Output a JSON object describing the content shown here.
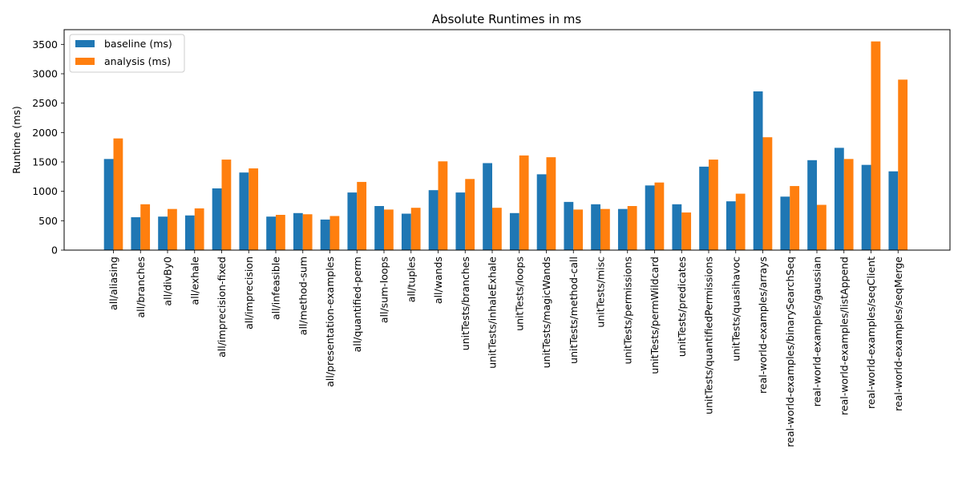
{
  "chart_data": {
    "type": "bar",
    "title": "Absolute Runtimes in ms",
    "xlabel": "",
    "ylabel": "Runtime (ms)",
    "ylim": [
      0,
      3750
    ],
    "yticks": [
      0,
      500,
      1000,
      1500,
      2000,
      2500,
      3000,
      3500
    ],
    "grid": false,
    "legend_position": "top-left",
    "categories": [
      "all/aliasing",
      "all/branches",
      "all/divBy0",
      "all/exhale",
      "all/imprecision-fixed",
      "all/imprecision",
      "all/infeasible",
      "all/method-sum",
      "all/presentation-examples",
      "all/quantified-perm",
      "all/sum-loops",
      "all/tuples",
      "all/wands",
      "unitTests/branches",
      "unitTests/inhaleExhale",
      "unitTests/loops",
      "unitTests/magicWands",
      "unitTests/method-call",
      "unitTests/misc",
      "unitTests/permissions",
      "unitTests/permWildcard",
      "unitTests/predicates",
      "unitTests/quantifiedPermissions",
      "unitTests/quasihavoc",
      "real-world-examples/arrays",
      "real-world-examples/binarySearchSeq",
      "real-world-examples/gaussian",
      "real-world-examples/listAppend",
      "real-world-examples/seqClient",
      "real-world-examples/seqMerge"
    ],
    "series": [
      {
        "name": "baseline (ms)",
        "color": "#1f77b4",
        "values": [
          1550,
          560,
          570,
          590,
          1050,
          1320,
          570,
          630,
          520,
          980,
          750,
          620,
          1020,
          980,
          1480,
          630,
          1290,
          820,
          780,
          700,
          1100,
          780,
          1420,
          830,
          2700,
          910,
          1530,
          1740,
          1450,
          1340
        ]
      },
      {
        "name": "analysis (ms)",
        "color": "#ff7f0e",
        "values": [
          1900,
          780,
          700,
          710,
          1540,
          1390,
          600,
          610,
          580,
          1160,
          690,
          720,
          1510,
          1210,
          720,
          1610,
          1580,
          690,
          700,
          750,
          1150,
          640,
          1540,
          960,
          1920,
          1090,
          770,
          1550,
          3550,
          2900
        ]
      }
    ]
  }
}
